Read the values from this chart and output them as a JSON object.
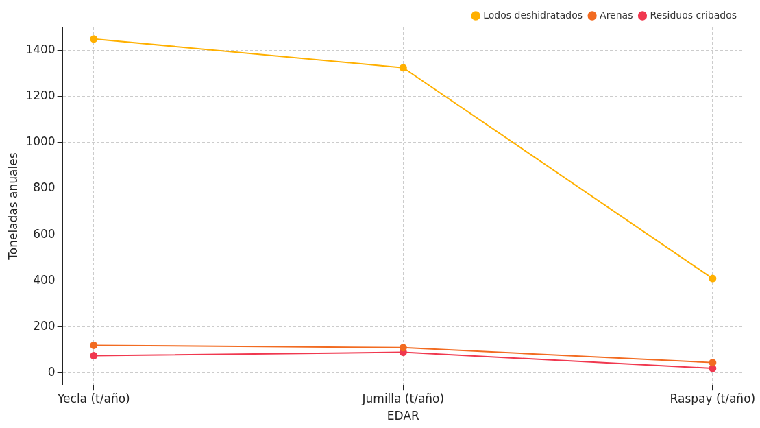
{
  "chart_data": {
    "type": "line",
    "xlabel": "EDAR",
    "ylabel": "Toneladas anuales",
    "categories": [
      "Yecla (t/año)",
      "Jumilla (t/año)",
      "Raspay (t/año)"
    ],
    "series": [
      {
        "name": "Lodos deshidratados",
        "color": "#ffb000",
        "values": [
          1450,
          1325,
          410
        ]
      },
      {
        "name": "Arenas",
        "color": "#f26b21",
        "values": [
          120,
          110,
          45
        ]
      },
      {
        "name": "Residuos cribados",
        "color": "#f0384f",
        "values": [
          75,
          90,
          20
        ]
      }
    ],
    "ylim": [
      -52,
      1500
    ],
    "yticks": [
      0,
      200,
      400,
      600,
      800,
      1000,
      1200,
      1400
    ],
    "grid": true,
    "legend": "top right",
    "marker": "circle",
    "line_style": "solid"
  }
}
